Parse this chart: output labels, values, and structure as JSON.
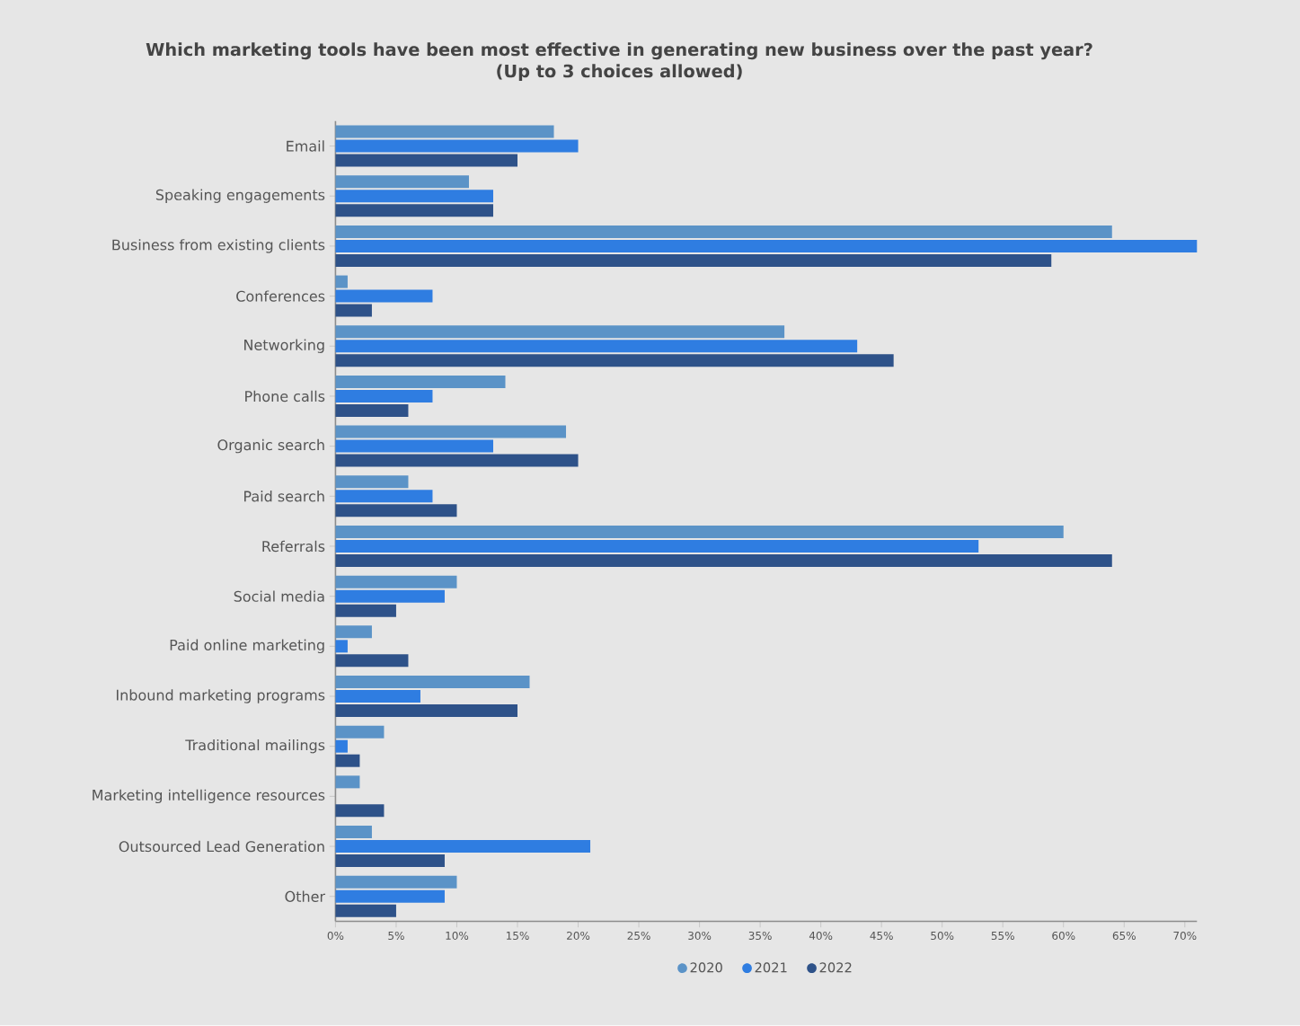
{
  "chart_data": {
    "type": "bar",
    "orientation": "horizontal",
    "title": "Which marketing tools have been most effective in generating new business over the past year?",
    "subtitle": "(Up to 3 choices allowed)",
    "categories": [
      "Email",
      "Speaking engagements",
      "Business from existing clients",
      "Conferences",
      "Networking",
      "Phone calls",
      "Organic search",
      "Paid search",
      "Referrals",
      "Social media",
      "Paid online marketing",
      "Inbound marketing programs",
      "Traditional mailings",
      "Marketing intelligence resources",
      "Outsourced Lead Generation",
      "Other"
    ],
    "series": [
      {
        "name": "2020",
        "color": "#5b93c7",
        "values": [
          18,
          11,
          64,
          1,
          37,
          14,
          19,
          6,
          60,
          10,
          3,
          16,
          4,
          2,
          3,
          10
        ]
      },
      {
        "name": "2021",
        "color": "#2f7de1",
        "values": [
          20,
          13,
          71,
          8,
          43,
          8,
          13,
          8,
          53,
          9,
          1,
          7,
          1,
          0,
          21,
          9
        ]
      },
      {
        "name": "2022",
        "color": "#2e5289",
        "values": [
          15,
          13,
          59,
          3,
          46,
          6,
          20,
          10,
          64,
          5,
          6,
          15,
          2,
          4,
          9,
          5
        ]
      }
    ],
    "xlim": [
      0,
      71
    ],
    "xticks": [
      {
        "value": 0,
        "label": "0%"
      },
      {
        "value": 5,
        "label": "5%"
      },
      {
        "value": 10,
        "label": "10%"
      },
      {
        "value": 15,
        "label": "15%"
      },
      {
        "value": 20,
        "label": "20%"
      },
      {
        "value": 25,
        "label": "25%"
      },
      {
        "value": 30,
        "label": "30%"
      },
      {
        "value": 35,
        "label": "35%"
      },
      {
        "value": 40,
        "label": "40%"
      },
      {
        "value": 45,
        "label": "45%"
      },
      {
        "value": 50,
        "label": "50%"
      },
      {
        "value": 55,
        "label": "55%"
      },
      {
        "value": 60,
        "label": "60%"
      },
      {
        "value": 65,
        "label": "65%"
      },
      {
        "value": 70,
        "label": "70%"
      }
    ],
    "legend": "bottom"
  }
}
